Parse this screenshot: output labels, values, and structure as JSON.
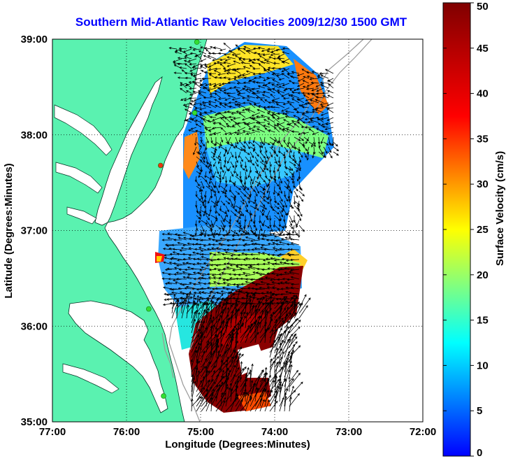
{
  "title": "Southern Mid-Atlantic Raw Velocities 2009/12/30 1500 GMT",
  "x_axis": {
    "label": "Longitude (Degrees:Minutes)",
    "ticks": [
      "77:00",
      "76:00",
      "75:00",
      "74:00",
      "73:00",
      "72:00"
    ],
    "range": [
      -77,
      -72
    ]
  },
  "y_axis": {
    "label": "Latitude (Degrees:Minutes)",
    "ticks": [
      "39:00",
      "38:00",
      "37:00",
      "36:00",
      "35:00"
    ],
    "range": [
      35,
      39
    ]
  },
  "colorbar": {
    "label": "Surface Velocity (cm/s)",
    "ticks": [
      "50",
      "45",
      "40",
      "35",
      "30",
      "25",
      "20",
      "15",
      "10",
      "5",
      "0"
    ],
    "range": [
      0,
      50
    ],
    "colormap": "jet"
  },
  "colors": {
    "title": "#0000ff",
    "land": "#5af2b0",
    "coastline": "#000000",
    "bathymetry": "#999999",
    "station": "#33dd33",
    "station_alt": "#ee3311"
  },
  "map_data": {
    "grid": "dotted",
    "stations": [
      {
        "lon": -75.05,
        "lat": 38.97,
        "state": "active"
      },
      {
        "lon": -75.08,
        "lat": 38.23,
        "state": "active"
      },
      {
        "lon": -75.54,
        "lat": 37.68,
        "state": "alt"
      },
      {
        "lon": -75.7,
        "lat": 36.18,
        "state": "active"
      },
      {
        "lon": -75.5,
        "lat": 35.27,
        "state": "active"
      }
    ]
  }
}
